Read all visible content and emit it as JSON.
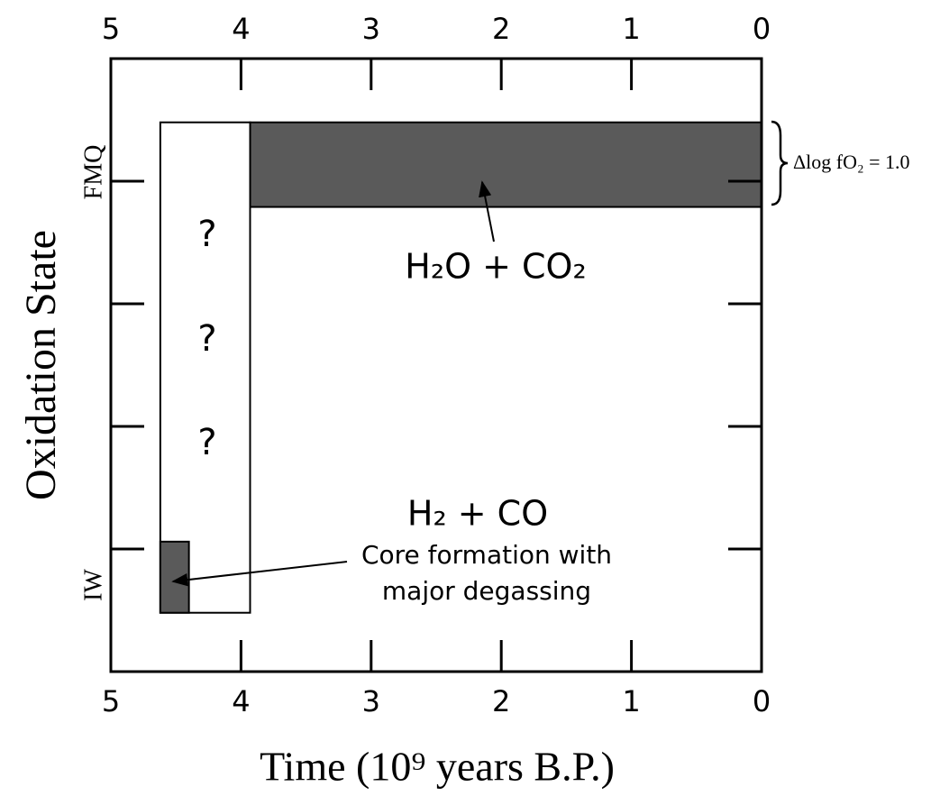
{
  "chart_data": {
    "type": "range",
    "xlabel": "Time (10⁹ years B.P.)",
    "ylabel": "Oxidation State",
    "xlim": [
      5,
      0
    ],
    "xticks": [
      5,
      4,
      3,
      2,
      1,
      0
    ],
    "ylim": [
      -1,
      4
    ],
    "yticks": [
      {
        "value": 0,
        "label": "IW"
      },
      {
        "value": 1,
        "label": null
      },
      {
        "value": 2,
        "label": null
      },
      {
        "value": 3,
        "label": "FMQ"
      }
    ],
    "regions": [
      {
        "x": [
          3.93,
          0
        ],
        "y": [
          2.79,
          3.48
        ],
        "color": "#5a5a5a"
      },
      {
        "x": [
          4.62,
          3.93
        ],
        "y": [
          -0.52,
          3.48
        ],
        "color": "#ffffff"
      },
      {
        "x": [
          4.62,
          4.4
        ],
        "y": [
          -0.52,
          0.06
        ],
        "color": "#5a5a5a"
      }
    ],
    "annotations": [
      "?",
      "?",
      "?",
      "H₂O + CO₂",
      "H₂ + CO",
      "Core formation with",
      "major degassing",
      "Δlog fO₂ = 1.0"
    ]
  }
}
